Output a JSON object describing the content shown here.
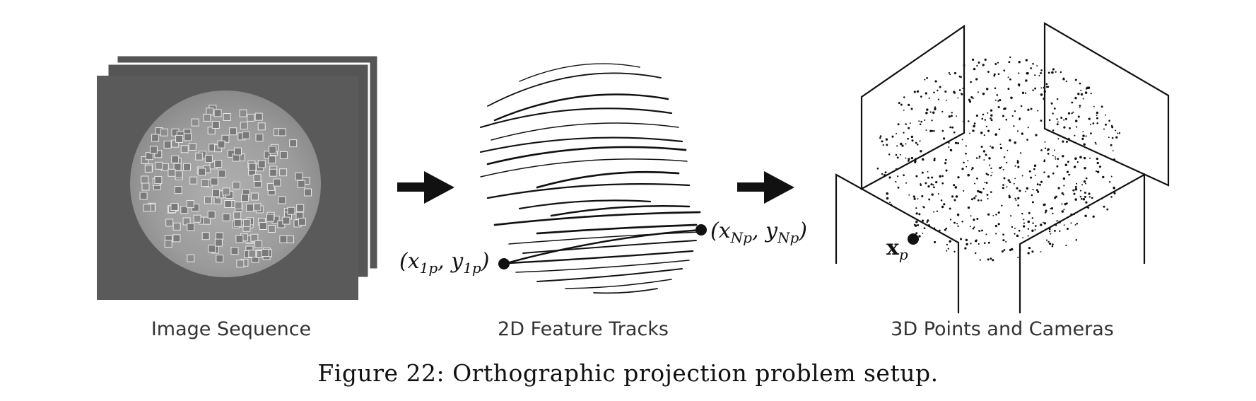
{
  "panels": {
    "image_sequence": {
      "label": "Image Sequence"
    },
    "feature_tracks": {
      "label": "2D Feature Tracks",
      "start_point_label": {
        "open": "(x",
        "sub1": "1p",
        "mid": ", y",
        "sub2": "1p",
        "close": ")"
      },
      "end_point_label": {
        "open": "(x",
        "sub1": "Np",
        "mid": ", y",
        "sub2": "Np",
        "close": ")"
      }
    },
    "points_cameras": {
      "label": "3D Points and Cameras",
      "point_label": {
        "base": "x",
        "sub": "p"
      }
    }
  },
  "caption": "Figure 22: Orthographic projection problem setup.",
  "colors": {
    "ink": "#111111",
    "frame_dark": "#555555",
    "disc": "#9a9a9a"
  }
}
